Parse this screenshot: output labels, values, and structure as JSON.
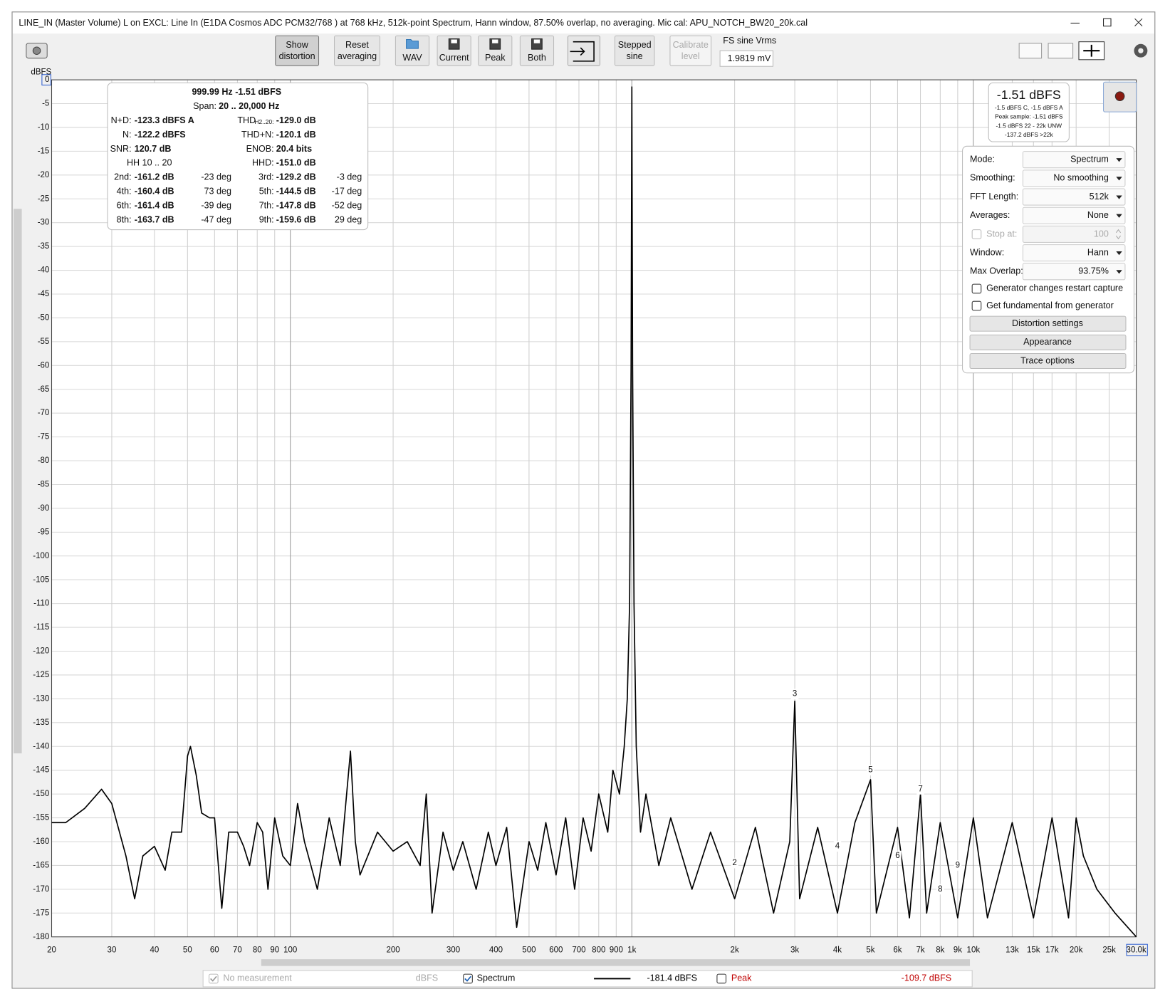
{
  "window": {
    "title": "LINE_IN (Master Volume) L on EXCL: Line In (E1DA Cosmos ADC PCM32/768      ) at 768 kHz, 512k-point Spectrum, Hann window, 87.50% overlap, no averaging. Mic cal: APU_NOTCH_BW20_20k.cal"
  },
  "toolbar": {
    "buttons": [
      {
        "lines": [
          "Show",
          "distortion"
        ],
        "pressed": true
      },
      {
        "lines": [
          "Reset",
          "averaging"
        ]
      },
      {
        "lines": [
          "WAV"
        ],
        "icon": "folder"
      },
      {
        "lines": [
          "Current"
        ],
        "icon": "disk"
      },
      {
        "lines": [
          "Peak"
        ],
        "icon": "disk"
      },
      {
        "lines": [
          "Both"
        ],
        "icon": "disk"
      },
      {
        "lines": [
          "Stepped",
          "sine"
        ]
      },
      {
        "lines": [
          "Calibrate",
          "level"
        ],
        "disabled": true
      }
    ],
    "fs_sine_label": "FS sine Vrms",
    "fs_sine_value": "1.9819 mV"
  },
  "chart_data": {
    "type": "line",
    "y_axis_label": "dBFS",
    "log_x": true,
    "grid": true,
    "xlim": [
      20,
      30000
    ],
    "ylim": [
      -180,
      0
    ],
    "xticks": [
      20,
      30,
      40,
      50,
      60,
      70,
      80,
      90,
      100,
      200,
      300,
      400,
      500,
      600,
      700,
      800,
      900,
      {
        "value": 1000,
        "label": "1k"
      },
      {
        "value": 2000,
        "label": "2k"
      },
      {
        "value": 3000,
        "label": "3k"
      },
      {
        "value": 4000,
        "label": "4k"
      },
      {
        "value": 5000,
        "label": "5k"
      },
      {
        "value": 6000,
        "label": "6k"
      },
      {
        "value": 7000,
        "label": "7k"
      },
      {
        "value": 8000,
        "label": "8k"
      },
      {
        "value": 9000,
        "label": "9k"
      },
      {
        "value": 10000,
        "label": "10k"
      },
      {
        "value": 13000,
        "label": "13k"
      },
      {
        "value": 15000,
        "label": "15k"
      },
      {
        "value": 17000,
        "label": "17k"
      },
      {
        "value": 20000,
        "label": "20k"
      },
      {
        "value": 25000,
        "label": "25k"
      },
      {
        "value": 30000,
        "label": "30.0k"
      }
    ],
    "yticks": [
      0,
      -5,
      -10,
      -15,
      -20,
      -25,
      -30,
      -35,
      -40,
      -45,
      -50,
      -55,
      -60,
      -65,
      -70,
      -75,
      -80,
      -85,
      -90,
      -95,
      -100,
      -105,
      -110,
      -115,
      -120,
      -125,
      -130,
      -135,
      -140,
      -145,
      -150,
      -155,
      -160,
      -165,
      -170,
      -175,
      -180
    ],
    "series": [
      {
        "name": "Spectrum",
        "color": "#000000",
        "x": [
          20,
          22,
          25,
          28,
          30,
          33,
          35,
          37,
          40,
          43,
          45,
          48,
          50,
          51,
          53,
          55,
          58,
          60,
          63,
          66,
          70,
          73,
          76,
          80,
          83,
          86,
          90,
          95,
          100,
          105,
          110,
          120,
          130,
          140,
          150,
          155,
          160,
          180,
          200,
          220,
          240,
          250,
          260,
          280,
          300,
          320,
          350,
          380,
          400,
          430,
          460,
          500,
          530,
          560,
          600,
          640,
          680,
          720,
          760,
          800,
          850,
          880,
          920,
          950,
          970,
          985,
          995,
          1000,
          1005,
          1015,
          1030,
          1060,
          1100,
          1200,
          1300,
          1500,
          1700,
          2000,
          2300,
          2600,
          2900,
          3000,
          3100,
          3500,
          4000,
          4500,
          5000,
          5200,
          6000,
          6500,
          7000,
          7300,
          8000,
          9000,
          10000,
          11000,
          13000,
          15000,
          17000,
          19000,
          20000,
          21000,
          23000,
          26000,
          30000
        ],
        "values": [
          -156,
          -156,
          -153,
          -149,
          -152,
          -163,
          -172,
          -163,
          -161,
          -166,
          -158,
          -158,
          -142,
          -140,
          -146,
          -154,
          -155,
          -155,
          -174,
          -158,
          -158,
          -161,
          -165,
          -156,
          -158,
          -170,
          -155,
          -163,
          -165,
          -152,
          -160,
          -170,
          -155,
          -165,
          -141,
          -160,
          -167,
          -158,
          -162,
          -160,
          -165,
          -150,
          -175,
          -158,
          -166,
          -160,
          -170,
          -158,
          -165,
          -157,
          -178,
          -160,
          -166,
          -156,
          -167,
          -155,
          -170,
          -155,
          -162,
          -150,
          -158,
          -145,
          -150,
          -140,
          -130,
          -110,
          -60,
          -1.5,
          -60,
          -110,
          -140,
          -158,
          -150,
          -165,
          -155,
          -170,
          -158,
          -172,
          -157,
          -175,
          -160,
          -130.5,
          -172,
          -157,
          -175,
          -156,
          -147,
          -175,
          -157,
          -176,
          -150,
          -175,
          -156,
          -176,
          -155,
          -176,
          -156,
          -176,
          -155,
          -176,
          -155,
          -163,
          -170,
          -175,
          -180
        ]
      }
    ],
    "harmonic_labels": [
      {
        "label": "3",
        "x": 3000,
        "y": -129
      },
      {
        "label": "5",
        "x": 5000,
        "y": -145
      },
      {
        "label": "7",
        "x": 7000,
        "y": -149
      },
      {
        "label": "2",
        "x": 2000,
        "y": -164.5
      },
      {
        "label": "4",
        "x": 4000,
        "y": -161
      },
      {
        "label": "6",
        "x": 6000,
        "y": -163
      },
      {
        "label": "9",
        "x": 9000,
        "y": -165
      },
      {
        "label": "8",
        "x": 8000,
        "y": -170
      }
    ]
  },
  "distortion": {
    "header": "999.99 Hz  -1.51 dBFS",
    "span_label": "Span:",
    "span_value": "20 .. 20,000 Hz",
    "rows": [
      {
        "l1": "N+D:",
        "v1": "-123.3 dBFS A",
        "l2": "THD",
        "l2sub": "H2..20:",
        "v2": "-129.0 dB"
      },
      {
        "l1": "N:",
        "v1": "-122.2 dBFS",
        "l2": "THD+N:",
        "v2": "-120.1 dB"
      },
      {
        "l1": "SNR:",
        "v1": "120.7 dB",
        "l2": "ENOB:",
        "v2": "20.4 bits"
      },
      {
        "l1": "HH 10 .. 20",
        "l2": "HHD:",
        "v2": "-151.0 dB"
      },
      {
        "l1": "2nd:",
        "v1": "-161.2 dB",
        "p1": "-23 deg",
        "l2": "3rd:",
        "v2": "-129.2 dB",
        "p2": "-3 deg"
      },
      {
        "l1": "4th:",
        "v1": "-160.4 dB",
        "p1": "73 deg",
        "l2": "5th:",
        "v2": "-144.5 dB",
        "p2": "-17 deg"
      },
      {
        "l1": "6th:",
        "v1": "-161.4 dB",
        "p1": "-39 deg",
        "l2": "7th:",
        "v2": "-147.8 dB",
        "p2": "-52 deg"
      },
      {
        "l1": "8th:",
        "v1": "-163.7 dB",
        "p1": "-47 deg",
        "l2": "9th:",
        "v2": "-159.6 dB",
        "p2": "29 deg"
      }
    ]
  },
  "level_meter": {
    "value": "-1.51 dBFS",
    "lines": [
      "-1.5 dBFS C, -1.5 dBFS A",
      "Peak sample: -1.51 dBFS",
      "-1.5 dBFS 22 - 22k UNW",
      "-137.2 dBFS >22k"
    ]
  },
  "settings": {
    "rows": [
      {
        "label": "Mode:",
        "value": "Spectrum"
      },
      {
        "label": "Smoothing:",
        "value": "No smoothing"
      },
      {
        "label": "FFT Length:",
        "value": "512k"
      },
      {
        "label": "Averages:",
        "value": "None"
      },
      {
        "label": "Stop at:",
        "value": "100",
        "checkbox": true,
        "disabled": true
      },
      {
        "label": "Window:",
        "value": "Hann"
      },
      {
        "label": "Max Overlap:",
        "value": "93.75%"
      }
    ],
    "checkboxes": [
      "Generator changes restart capture",
      "Get fundamental from generator"
    ],
    "buttons": [
      "Distortion settings",
      "Appearance",
      "Trace options"
    ]
  },
  "legend_bar": {
    "items": [
      {
        "name": "No measurement",
        "checked": true,
        "disabled": true,
        "unit": "dBFS"
      },
      {
        "name": "Spectrum",
        "checked": true,
        "value": "-181.4 dBFS",
        "color": "#000000"
      },
      {
        "name": "Peak",
        "checked": false,
        "value": "-109.7 dBFS",
        "color": "#c00000"
      }
    ]
  }
}
